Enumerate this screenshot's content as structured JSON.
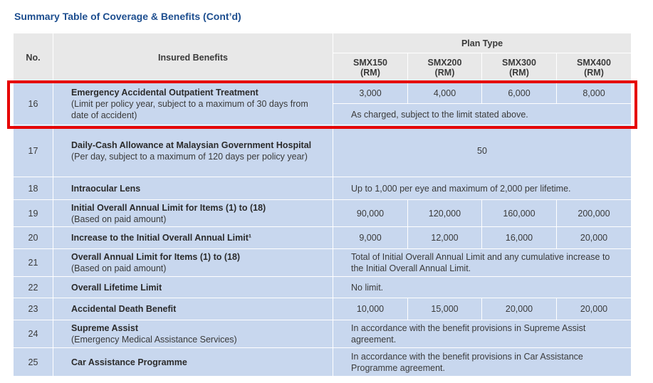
{
  "title": "Summary Table of Coverage & Benefits (Cont’d)",
  "headers": {
    "no": "No.",
    "benefits": "Insured Benefits",
    "plan_type": "Plan Type",
    "plans": [
      {
        "name": "SMX150",
        "unit": "(RM)"
      },
      {
        "name": "SMX200",
        "unit": "(RM)"
      },
      {
        "name": "SMX300",
        "unit": "(RM)"
      },
      {
        "name": "SMX400",
        "unit": "(RM)"
      }
    ]
  },
  "rows": [
    {
      "no": "16",
      "title": "Emergency Accidental Outpatient Treatment",
      "note": "(Limit per policy year, subject to a maximum of 30 days from date of accident)",
      "values": [
        "3,000",
        "4,000",
        "6,000",
        "8,000"
      ],
      "full": "As charged, subject to the limit stated above."
    },
    {
      "no": "17",
      "title": "Daily-Cash Allowance at Malaysian Government Hospital",
      "note": "(Per day, subject to a maximum of 120 days per policy year)",
      "full": "50"
    },
    {
      "no": "18",
      "title": "Intraocular Lens",
      "full": "Up to 1,000 per eye and maximum of 2,000 per lifetime."
    },
    {
      "no": "19",
      "title": "Initial Overall Annual Limit for Items (1) to (18)",
      "note": "(Based on paid amount)",
      "values": [
        "90,000",
        "120,000",
        "160,000",
        "200,000"
      ]
    },
    {
      "no": "20",
      "title": "Increase to the Initial Overall Annual Limit¹",
      "values": [
        "9,000",
        "12,000",
        "16,000",
        "20,000"
      ]
    },
    {
      "no": "21",
      "title": "Overall Annual Limit for Items (1) to (18)",
      "note": "(Based on paid amount)",
      "full": "Total of Initial Overall Annual Limit and any cumulative increase to the Initial Overall Annual Limit."
    },
    {
      "no": "22",
      "title": "Overall Lifetime Limit",
      "full": "No limit."
    },
    {
      "no": "23",
      "title": "Accidental Death Benefit",
      "values": [
        "10,000",
        "15,000",
        "20,000",
        "20,000"
      ]
    },
    {
      "no": "24",
      "title": "Supreme Assist",
      "note": "(Emergency Medical Assistance Services)",
      "full": "In accordance with the benefit provisions in Supreme Assist agreement."
    },
    {
      "no": "25",
      "title": "Car Assistance Programme",
      "full": "In accordance with the benefit provisions in Car Assistance Programme agreement."
    }
  ]
}
